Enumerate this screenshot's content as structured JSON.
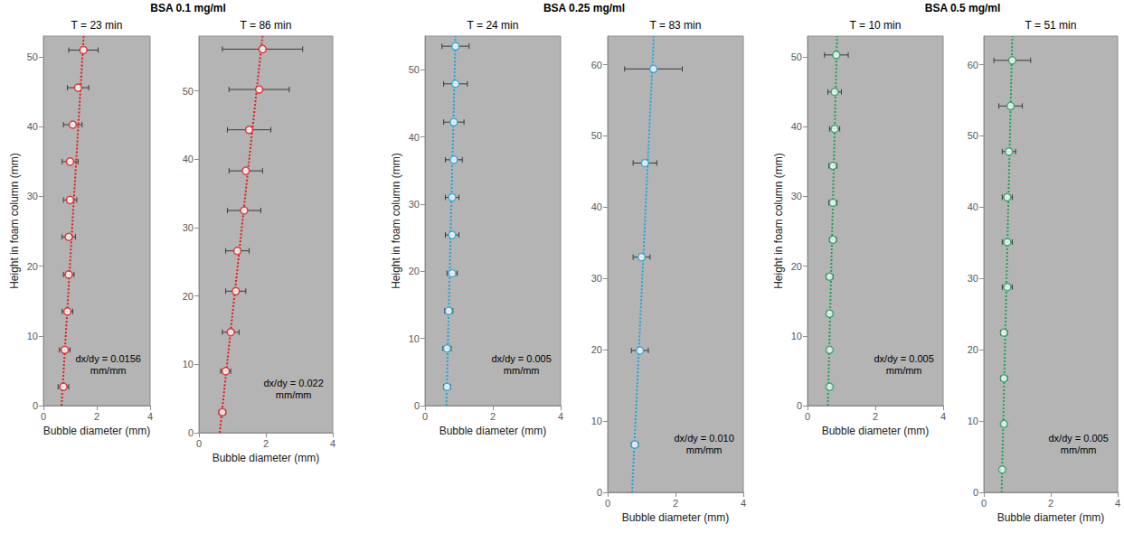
{
  "groups": [
    {
      "title": "BSA 0.1 mg/ml"
    },
    {
      "title": "BSA 0.25 mg/ml"
    },
    {
      "title": "BSA 0.5 mg/ml"
    }
  ],
  "chart_data": [
    {
      "type": "scatter",
      "title": "T = 23 min",
      "xlabel": "Bubble diameter (mm)",
      "ylabel": "Height in foam column (mm)",
      "annotation": "dx/dy = 0.0156 mm/mm",
      "xlim": [
        0,
        4
      ],
      "xticks": [
        0,
        2,
        4
      ],
      "ylim": [
        0,
        53
      ],
      "yticks": [
        0,
        10,
        20,
        30,
        40,
        50
      ],
      "series": [
        {
          "type": "scatter",
          "marker": "circle",
          "color": "#e31a1c",
          "x": [
            0.75,
            0.8,
            0.9,
            0.95,
            0.95,
            1.0,
            1.0,
            1.1,
            1.3,
            1.5
          ],
          "values": [
            2.7,
            8,
            13.5,
            18.8,
            24.2,
            29.5,
            35,
            40.3,
            45.6,
            51
          ],
          "x_errors": [
            0.2,
            0.2,
            0.2,
            0.2,
            0.25,
            0.25,
            0.3,
            0.35,
            0.4,
            0.55
          ]
        },
        {
          "type": "line",
          "line_style": "dotted",
          "color": "#e31a1c",
          "x": [
            0.68,
            1.51
          ],
          "values": [
            0,
            53
          ]
        }
      ]
    },
    {
      "type": "scatter",
      "title": "T = 86 min",
      "xlabel": "Bubble diameter (mm)",
      "annotation": "dx/dy = 0.022 mm/mm",
      "xlim": [
        0,
        4
      ],
      "xticks": [
        0,
        2,
        4
      ],
      "ylim": [
        0,
        58
      ],
      "yticks": [
        0,
        10,
        20,
        30,
        40,
        50
      ],
      "series": [
        {
          "type": "scatter",
          "marker": "circle",
          "color": "#e31a1c",
          "x": [
            0.7,
            0.8,
            0.95,
            1.1,
            1.15,
            1.35,
            1.4,
            1.5,
            1.8,
            1.9
          ],
          "values": [
            3,
            9,
            14.7,
            20.7,
            26.6,
            32.5,
            38.3,
            44.3,
            50.2,
            56.1
          ],
          "x_errors": [
            0.1,
            0.15,
            0.25,
            0.3,
            0.35,
            0.5,
            0.5,
            0.65,
            0.9,
            1.2
          ]
        },
        {
          "type": "line",
          "line_style": "dotted",
          "color": "#e31a1c",
          "x": [
            0.62,
            1.9
          ],
          "values": [
            0,
            58
          ]
        }
      ]
    },
    {
      "type": "scatter",
      "title": "T = 24 min",
      "xlabel": "Bubble diameter (mm)",
      "ylabel": "Height in foam column (mm)",
      "annotation": "dx/dy = 0.005 mm/mm",
      "xlim": [
        0,
        4
      ],
      "xticks": [
        0,
        2,
        4
      ],
      "ylim": [
        0,
        55
      ],
      "yticks": [
        0,
        10,
        20,
        30,
        40,
        50
      ],
      "series": [
        {
          "type": "scatter",
          "marker": "circle",
          "color": "#1fa5db",
          "x": [
            0.65,
            0.65,
            0.7,
            0.8,
            0.8,
            0.8,
            0.85,
            0.85,
            0.9,
            0.9
          ],
          "values": [
            2.8,
            8.5,
            14.1,
            19.7,
            25.4,
            31,
            36.6,
            42.2,
            47.9,
            53.5
          ],
          "x_errors": [
            0.1,
            0.12,
            0.12,
            0.15,
            0.2,
            0.2,
            0.25,
            0.3,
            0.35,
            0.4
          ]
        },
        {
          "type": "line",
          "line_style": "dotted",
          "color": "#1fa5db",
          "x": [
            0.63,
            0.9
          ],
          "values": [
            0,
            55
          ]
        }
      ]
    },
    {
      "type": "scatter",
      "title": "T = 83 min",
      "xlabel": "Bubble diameter (mm)",
      "annotation": "dx/dy = 0.010 mm/mm",
      "xlim": [
        0,
        4
      ],
      "xticks": [
        0,
        2,
        4
      ],
      "ylim": [
        0,
        64
      ],
      "yticks": [
        0,
        10,
        20,
        30,
        40,
        50,
        60
      ],
      "series": [
        {
          "type": "scatter",
          "marker": "circle",
          "color": "#1fa5db",
          "x": [
            0.8,
            0.95,
            1.0,
            1.1,
            1.35
          ],
          "values": [
            6.7,
            19.9,
            33,
            46.2,
            59.4
          ],
          "x_errors": [
            0.1,
            0.25,
            0.25,
            0.35,
            0.85
          ]
        },
        {
          "type": "line",
          "line_style": "dotted",
          "color": "#1fa5db",
          "x": [
            0.72,
            1.36
          ],
          "values": [
            0,
            64
          ]
        }
      ]
    },
    {
      "type": "scatter",
      "title": "T = 10 min",
      "xlabel": "Bubble diameter (mm)",
      "ylabel": "Height in foam column (mm)",
      "annotation": "dx/dy = 0.005 mm/mm",
      "xlim": [
        0,
        4
      ],
      "xticks": [
        0,
        2,
        4
      ],
      "ylim": [
        0,
        53
      ],
      "yticks": [
        0,
        10,
        20,
        30,
        40,
        50
      ],
      "series": [
        {
          "type": "scatter",
          "marker": "circle",
          "color": "#1fa35a",
          "x": [
            0.65,
            0.65,
            0.65,
            0.65,
            0.75,
            0.75,
            0.75,
            0.8,
            0.8,
            0.85
          ],
          "values": [
            2.7,
            8,
            13.2,
            18.5,
            23.8,
            29.1,
            34.4,
            39.7,
            45,
            50.3
          ],
          "x_errors": [
            0.05,
            0.05,
            0.07,
            0.1,
            0.1,
            0.12,
            0.12,
            0.15,
            0.2,
            0.35
          ]
        },
        {
          "type": "line",
          "line_style": "dotted",
          "color": "#1fa35a",
          "x": [
            0.6,
            0.87
          ],
          "values": [
            0,
            53
          ]
        }
      ]
    },
    {
      "type": "scatter",
      "title": "T = 51 min",
      "xlabel": "Bubble diameter (mm)",
      "annotation": "dx/dy = 0.005 mm/mm",
      "xlim": [
        0,
        4
      ],
      "xticks": [
        0,
        2,
        4
      ],
      "ylim": [
        0,
        64
      ],
      "yticks": [
        0,
        10,
        20,
        30,
        40,
        50,
        60
      ],
      "series": [
        {
          "type": "scatter",
          "marker": "circle",
          "color": "#1fa35a",
          "x": [
            0.55,
            0.6,
            0.6,
            0.6,
            0.7,
            0.7,
            0.7,
            0.75,
            0.8,
            0.85
          ],
          "values": [
            3.2,
            9.6,
            16,
            22.4,
            28.8,
            35.1,
            41.4,
            47.8,
            54.2,
            60.6
          ],
          "x_errors": [
            0.05,
            0.07,
            0.1,
            0.1,
            0.15,
            0.15,
            0.15,
            0.2,
            0.35,
            0.55
          ]
        },
        {
          "type": "line",
          "line_style": "dotted",
          "color": "#1fa35a",
          "x": [
            0.53,
            0.85
          ],
          "values": [
            0,
            64
          ]
        }
      ]
    }
  ]
}
